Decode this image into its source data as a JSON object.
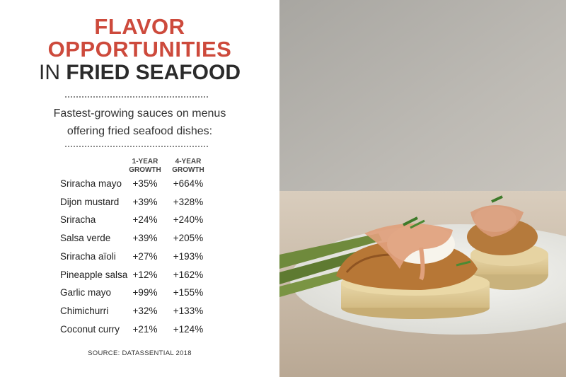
{
  "title": {
    "line1": "FLAVOR",
    "line2": "OPPORTUNITIES",
    "line3_prefix": "IN",
    "line3_rest": "FRIED SEAFOOD"
  },
  "subtitle": {
    "line1": "Fastest-growing sauces on menus",
    "line2": "offering fried seafood dishes:"
  },
  "source": "SOURCE: DATASSENTIAL 2018",
  "colors": {
    "accent": "#cd4a3c",
    "text": "#2b2b2b"
  },
  "chart_data": {
    "type": "table",
    "title": "Fastest-growing sauces on menus offering fried seafood dishes:",
    "columns": [
      {
        "line1": "1-YEAR",
        "line2": "GROWTH"
      },
      {
        "line1": "4-YEAR",
        "line2": "GROWTH"
      }
    ],
    "rows": [
      {
        "sauce": "Sriracha mayo",
        "one_year": "+35%",
        "four_year": "+664%"
      },
      {
        "sauce": "Dijon mustard",
        "one_year": "+39%",
        "four_year": "+328%"
      },
      {
        "sauce": "Sriracha",
        "one_year": "+24%",
        "four_year": "+240%"
      },
      {
        "sauce": "Salsa verde",
        "one_year": "+39%",
        "four_year": "+205%"
      },
      {
        "sauce": "Sriracha aïoli",
        "one_year": "+27%",
        "four_year": "+193%"
      },
      {
        "sauce": "Pineapple salsa",
        "one_year": "+12%",
        "four_year": "+162%"
      },
      {
        "sauce": "Garlic mayo",
        "one_year": "+99%",
        "four_year": "+155%"
      },
      {
        "sauce": "Chimichurri",
        "one_year": "+32%",
        "four_year": "+133%"
      },
      {
        "sauce": "Coconut curry",
        "one_year": "+21%",
        "four_year": "+124%"
      }
    ]
  }
}
